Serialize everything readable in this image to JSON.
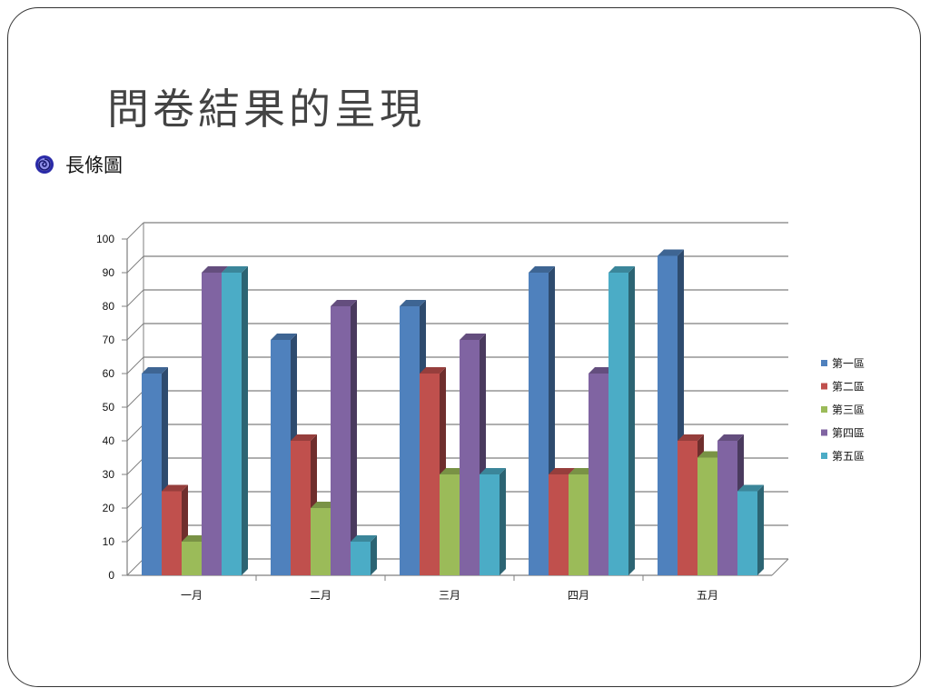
{
  "slide": {
    "title": "問卷結果的呈現",
    "bullet": "長條圖"
  },
  "chart_data": {
    "type": "bar",
    "title": "",
    "xlabel": "",
    "ylabel": "",
    "ylim": [
      0,
      100
    ],
    "yticks": [
      0,
      10,
      20,
      30,
      40,
      50,
      60,
      70,
      80,
      90,
      100
    ],
    "categories": [
      "一月",
      "二月",
      "三月",
      "四月",
      "五月"
    ],
    "series": [
      {
        "name": "第一區",
        "color": "#4F81BD",
        "values": [
          60,
          70,
          80,
          90,
          95
        ]
      },
      {
        "name": "第二區",
        "color": "#C0504D",
        "values": [
          25,
          40,
          60,
          30,
          40
        ]
      },
      {
        "name": "第三區",
        "color": "#9BBB59",
        "values": [
          10,
          20,
          30,
          30,
          35
        ]
      },
      {
        "name": "第四區",
        "color": "#8064A2",
        "values": [
          90,
          80,
          70,
          60,
          40
        ]
      },
      {
        "name": "第五區",
        "color": "#4BACC6",
        "values": [
          90,
          10,
          30,
          90,
          25
        ]
      }
    ],
    "grid": true,
    "legend": "right",
    "style": "3d-clustered-column"
  }
}
